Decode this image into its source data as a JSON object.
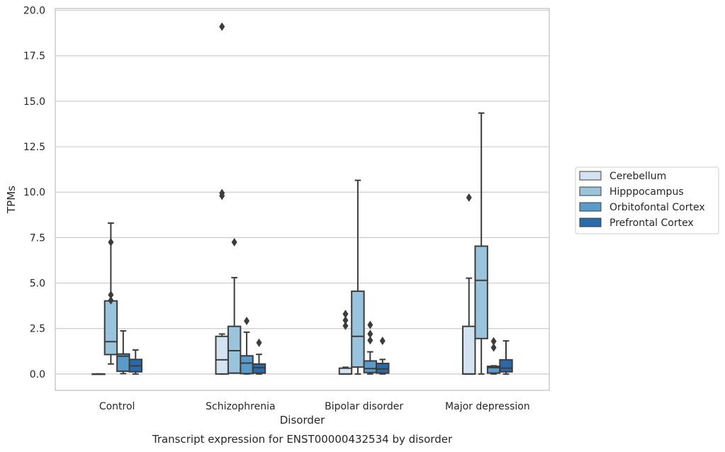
{
  "chart_data": {
    "type": "box",
    "title": "",
    "caption": "Transcript expression for ENST00000432534 by disorder",
    "xlabel": "Disorder",
    "ylabel": "TPMs",
    "ylim": [
      -0.9,
      20.1
    ],
    "yticks": [
      0.0,
      2.5,
      5.0,
      7.5,
      10.0,
      12.5,
      15.0,
      17.5,
      20.0
    ],
    "ytick_labels": [
      "0.0",
      "2.5",
      "5.0",
      "7.5",
      "10.0",
      "12.5",
      "15.0",
      "17.5",
      "20.0"
    ],
    "grid": "horizontal",
    "legend_position": "right-outside",
    "categories": [
      "Control",
      "Schizophrenia",
      "Bipolar disorder",
      "Major depression"
    ],
    "series": [
      {
        "name": "Cerebellum",
        "color": "#d3e3f1",
        "boxes": [
          {
            "whislo": 0.0,
            "q1": 0.0,
            "med": 0.0,
            "q3": 0.0,
            "whishi": 0.0,
            "fliers": []
          },
          {
            "whislo": 0.0,
            "q1": 0.0,
            "med": 0.78,
            "q3": 2.07,
            "whishi": 2.2,
            "fliers": [
              19.1,
              9.95,
              9.8
            ]
          },
          {
            "whislo": 0.0,
            "q1": 0.0,
            "med": 0.0,
            "q3": 0.32,
            "whishi": 0.37,
            "fliers": [
              3.3,
              2.95,
              2.65
            ]
          },
          {
            "whislo": 0.0,
            "q1": 0.0,
            "med": 0.0,
            "q3": 2.62,
            "whishi": 5.27,
            "fliers": [
              9.7
            ]
          }
        ]
      },
      {
        "name": "Hipppocampus",
        "color": "#9ac3dc",
        "boxes": [
          {
            "whislo": 0.55,
            "q1": 1.07,
            "med": 1.78,
            "q3": 4.02,
            "whishi": 8.3,
            "fliers": [
              7.25,
              4.35,
              4.05
            ]
          },
          {
            "whislo": 0.05,
            "q1": 0.05,
            "med": 1.28,
            "q3": 2.62,
            "whishi": 5.3,
            "fliers": [
              7.25
            ]
          },
          {
            "whislo": 0.0,
            "q1": 0.38,
            "med": 2.07,
            "q3": 4.55,
            "whishi": 10.65,
            "fliers": []
          },
          {
            "whislo": 0.0,
            "q1": 1.95,
            "med": 5.15,
            "q3": 7.03,
            "whishi": 14.35,
            "fliers": []
          }
        ]
      },
      {
        "name": "Orbitofontal Cortex",
        "color": "#5a9bc9",
        "boxes": [
          {
            "whislo": 0.02,
            "q1": 0.15,
            "med": 0.98,
            "q3": 1.1,
            "whishi": 2.37,
            "fliers": []
          },
          {
            "whislo": 0.0,
            "q1": 0.02,
            "med": 0.6,
            "q3": 1.0,
            "whishi": 2.3,
            "fliers": [
              2.92
            ]
          },
          {
            "whislo": 0.0,
            "q1": 0.08,
            "med": 0.3,
            "q3": 0.72,
            "whishi": 1.22,
            "fliers": [
              2.7,
              2.2,
              1.85
            ]
          },
          {
            "whislo": 0.0,
            "q1": 0.05,
            "med": 0.35,
            "q3": 0.42,
            "whishi": 0.45,
            "fliers": [
              1.8,
              1.45
            ]
          }
        ]
      },
      {
        "name": "Prefrontal Cortex",
        "color": "#2a6aa9",
        "boxes": [
          {
            "whislo": 0.0,
            "q1": 0.12,
            "med": 0.45,
            "q3": 0.8,
            "whishi": 1.32,
            "fliers": []
          },
          {
            "whislo": 0.0,
            "q1": 0.05,
            "med": 0.35,
            "q3": 0.55,
            "whishi": 1.08,
            "fliers": [
              1.72
            ]
          },
          {
            "whislo": 0.0,
            "q1": 0.05,
            "med": 0.28,
            "q3": 0.58,
            "whishi": 0.8,
            "fliers": [
              1.82
            ]
          },
          {
            "whislo": 0.0,
            "q1": 0.12,
            "med": 0.32,
            "q3": 0.78,
            "whishi": 1.82,
            "fliers": []
          }
        ]
      }
    ]
  }
}
